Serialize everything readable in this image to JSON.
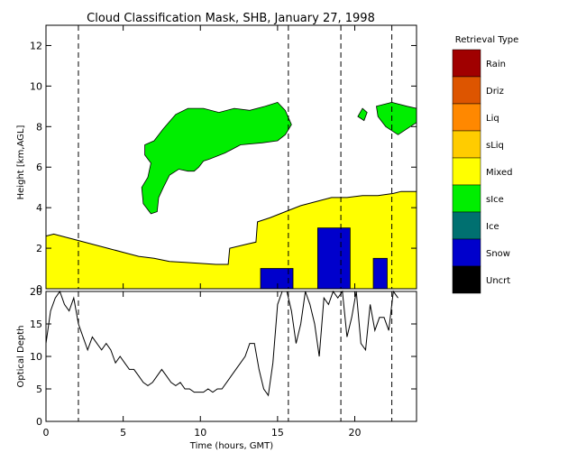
{
  "chart_data": [
    {
      "type": "heatmap",
      "title": "Cloud Classification Mask, SHB, January 27, 1998",
      "xlabel": "",
      "ylabel": "Height [km,AGL]",
      "xlim": [
        0,
        24
      ],
      "ylim": [
        0,
        13
      ],
      "x_ticks": [
        0,
        5,
        10,
        15,
        20
      ],
      "y_ticks": [
        0,
        2,
        4,
        6,
        8,
        10,
        12
      ],
      "dashed_vertical_lines_hours": [
        2.1,
        15.7,
        19.1,
        22.4
      ],
      "legend": {
        "title": "Retrieval Type",
        "placement": "right",
        "items": [
          {
            "label": "Rain",
            "color": "#a00000"
          },
          {
            "label": "Driz",
            "color": "#dd5500"
          },
          {
            "label": "Liq",
            "color": "#ff8800"
          },
          {
            "label": "sLiq",
            "color": "#ffcc00"
          },
          {
            "label": "Mixed",
            "color": "#ffff00"
          },
          {
            "label": "sIce",
            "color": "#00ee00"
          },
          {
            "label": "Ice",
            "color": "#007070"
          },
          {
            "label": "Snow",
            "color": "#0000cc"
          },
          {
            "label": "Uncrt",
            "color": "#000000"
          }
        ]
      },
      "mixed_layer_top_km": [
        {
          "x": 0.0,
          "y": 2.6
        },
        {
          "x": 0.5,
          "y": 2.7
        },
        {
          "x": 1.0,
          "y": 2.6
        },
        {
          "x": 2.0,
          "y": 2.4
        },
        {
          "x": 3.0,
          "y": 2.2
        },
        {
          "x": 4.0,
          "y": 2.0
        },
        {
          "x": 5.0,
          "y": 1.8
        },
        {
          "x": 6.0,
          "y": 1.6
        },
        {
          "x": 7.0,
          "y": 1.5
        },
        {
          "x": 8.0,
          "y": 1.35
        },
        {
          "x": 9.0,
          "y": 1.3
        },
        {
          "x": 10.0,
          "y": 1.25
        },
        {
          "x": 11.0,
          "y": 1.2
        },
        {
          "x": 11.8,
          "y": 1.2
        },
        {
          "x": 11.9,
          "y": 2.0
        },
        {
          "x": 13.0,
          "y": 2.2
        },
        {
          "x": 13.6,
          "y": 2.3
        },
        {
          "x": 13.7,
          "y": 3.3
        },
        {
          "x": 14.5,
          "y": 3.5
        },
        {
          "x": 15.5,
          "y": 3.8
        },
        {
          "x": 16.5,
          "y": 4.1
        },
        {
          "x": 17.5,
          "y": 4.3
        },
        {
          "x": 18.5,
          "y": 4.5
        },
        {
          "x": 19.5,
          "y": 4.5
        },
        {
          "x": 20.5,
          "y": 4.6
        },
        {
          "x": 21.5,
          "y": 4.6
        },
        {
          "x": 22.5,
          "y": 4.7
        },
        {
          "x": 23.0,
          "y": 4.8
        },
        {
          "x": 24.0,
          "y": 4.8
        }
      ],
      "sice_cloud_outline_km": [
        {
          "x": 6.4,
          "y": 7.1
        },
        {
          "x": 7.0,
          "y": 7.3
        },
        {
          "x": 7.6,
          "y": 7.9
        },
        {
          "x": 8.4,
          "y": 8.6
        },
        {
          "x": 9.2,
          "y": 8.9
        },
        {
          "x": 10.2,
          "y": 8.9
        },
        {
          "x": 11.2,
          "y": 8.7
        },
        {
          "x": 12.2,
          "y": 8.9
        },
        {
          "x": 13.2,
          "y": 8.8
        },
        {
          "x": 14.2,
          "y": 9.0
        },
        {
          "x": 15.0,
          "y": 9.2
        },
        {
          "x": 15.5,
          "y": 8.8
        },
        {
          "x": 15.9,
          "y": 8.1
        },
        {
          "x": 15.5,
          "y": 7.6
        },
        {
          "x": 15.0,
          "y": 7.3
        },
        {
          "x": 14.0,
          "y": 7.2
        },
        {
          "x": 12.6,
          "y": 7.1
        },
        {
          "x": 11.6,
          "y": 6.7
        },
        {
          "x": 10.6,
          "y": 6.4
        },
        {
          "x": 10.2,
          "y": 6.3
        },
        {
          "x": 9.9,
          "y": 6.0
        },
        {
          "x": 9.6,
          "y": 5.8
        },
        {
          "x": 9.2,
          "y": 5.8
        },
        {
          "x": 8.6,
          "y": 5.9
        },
        {
          "x": 8.0,
          "y": 5.6
        },
        {
          "x": 7.6,
          "y": 5.0
        },
        {
          "x": 7.3,
          "y": 4.5
        },
        {
          "x": 7.2,
          "y": 3.8
        },
        {
          "x": 6.8,
          "y": 3.7
        },
        {
          "x": 6.3,
          "y": 4.2
        },
        {
          "x": 6.2,
          "y": 5.0
        },
        {
          "x": 6.6,
          "y": 5.5
        },
        {
          "x": 6.8,
          "y": 6.2
        },
        {
          "x": 6.4,
          "y": 6.6
        }
      ],
      "sice_upper_patches_km": [
        [
          {
            "x": 20.2,
            "y": 8.5
          },
          {
            "x": 20.5,
            "y": 8.9
          },
          {
            "x": 20.8,
            "y": 8.7
          },
          {
            "x": 20.6,
            "y": 8.3
          }
        ],
        [
          {
            "x": 21.4,
            "y": 9.0
          },
          {
            "x": 22.4,
            "y": 9.2
          },
          {
            "x": 23.4,
            "y": 9.0
          },
          {
            "x": 24.0,
            "y": 8.9
          },
          {
            "x": 24.0,
            "y": 8.2
          },
          {
            "x": 23.4,
            "y": 7.9
          },
          {
            "x": 22.8,
            "y": 7.6
          },
          {
            "x": 22.0,
            "y": 8.0
          },
          {
            "x": 21.5,
            "y": 8.5
          }
        ]
      ],
      "snow_blocks": [
        {
          "x0": 13.9,
          "x1": 16.0,
          "y0": 0,
          "y1": 1.0
        },
        {
          "x0": 17.6,
          "x1": 19.7,
          "y0": 0,
          "y1": 3.0
        },
        {
          "x0": 21.2,
          "x1": 22.1,
          "y0": 0,
          "y1": 1.5
        }
      ]
    },
    {
      "type": "line",
      "xlabel": "Time (hours, GMT)",
      "ylabel": "Optical Depth",
      "xlim": [
        0,
        24
      ],
      "ylim": [
        0,
        20
      ],
      "x_ticks": [
        0,
        5,
        10,
        15,
        20
      ],
      "y_ticks": [
        0,
        5,
        10,
        15,
        20
      ],
      "dashed_vertical_lines_hours": [
        2.1,
        15.7,
        19.1,
        22.4
      ],
      "series": [
        {
          "x": [
            0.0,
            0.3,
            0.6,
            0.9,
            1.2,
            1.5,
            1.8,
            2.1,
            2.4,
            2.7,
            3.0,
            3.3,
            3.6,
            3.9,
            4.2,
            4.5,
            4.8,
            5.1,
            5.4,
            5.7,
            6.0,
            6.3,
            6.6,
            6.9,
            7.2,
            7.5,
            7.8,
            8.1,
            8.4,
            8.7,
            9.0,
            9.3,
            9.6,
            9.9,
            10.2,
            10.5,
            10.8,
            11.1,
            11.4,
            11.7,
            12.0,
            12.3,
            12.6,
            12.9,
            13.2,
            13.5,
            13.8,
            14.1,
            14.4,
            14.7,
            15.0,
            15.3,
            15.6,
            15.9,
            16.2,
            16.5,
            16.8,
            17.1,
            17.4,
            17.7,
            18.0,
            18.3,
            18.6,
            18.9,
            19.2,
            19.5,
            19.8,
            20.1,
            20.4,
            20.7,
            21.0,
            21.3,
            21.6,
            21.9,
            22.2,
            22.5,
            22.8
          ],
          "y": [
            12,
            17,
            19,
            20,
            18,
            17,
            19,
            15,
            13,
            11,
            13,
            12,
            11,
            12,
            11,
            9,
            10,
            9,
            8,
            8,
            7,
            6,
            5.5,
            6,
            7,
            8,
            7,
            6,
            5.5,
            6,
            5,
            5,
            4.5,
            4.5,
            4.5,
            5,
            4.5,
            5,
            5,
            6,
            7,
            8,
            9,
            10,
            12,
            12,
            8,
            5,
            4,
            9,
            18,
            20,
            20,
            17,
            12,
            15,
            20,
            18,
            15,
            10,
            19,
            18,
            20,
            19,
            20,
            13,
            16,
            20,
            12,
            11,
            18,
            14,
            16,
            16,
            14,
            20,
            19
          ]
        }
      ]
    }
  ]
}
